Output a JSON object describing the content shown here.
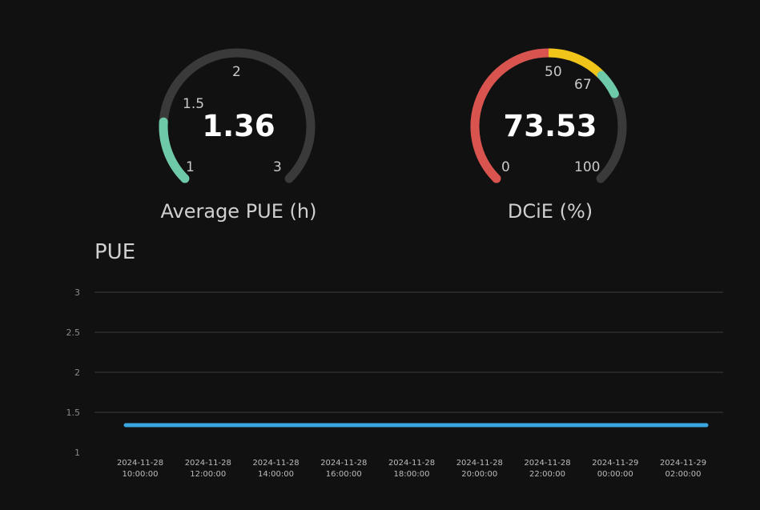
{
  "gauges": {
    "pue": {
      "value_text": "1.36",
      "value": 1.36,
      "label": "Average PUE (h)",
      "min": 1,
      "max": 3,
      "ticks": [
        "1",
        "1.5",
        "2",
        "3"
      ],
      "fill_color": "#6dc9a8",
      "track_color": "#3a3a3a"
    },
    "dcie": {
      "value_text": "73.53",
      "value": 73.53,
      "label": "DCiE (%)",
      "min": 0,
      "max": 100,
      "ticks": [
        "0",
        "50",
        "67",
        "100"
      ],
      "bands": [
        {
          "from": 0,
          "to": 50,
          "color": "#d9534f"
        },
        {
          "from": 50,
          "to": 67,
          "color": "#f0c419"
        },
        {
          "from": 67,
          "to": 73.53,
          "color": "#6dc9a8"
        }
      ],
      "track_color": "#3a3a3a"
    }
  },
  "chart_data": {
    "type": "line",
    "title": "PUE",
    "x": [
      "2024-11-28 10:00:00",
      "2024-11-28 12:00:00",
      "2024-11-28 14:00:00",
      "2024-11-28 16:00:00",
      "2024-11-28 18:00:00",
      "2024-11-28 20:00:00",
      "2024-11-28 22:00:00",
      "2024-11-29 00:00:00",
      "2024-11-29 02:00:00"
    ],
    "x_tick_labels": [
      [
        "2024-11-28",
        "10:00:00"
      ],
      [
        "2024-11-28",
        "12:00:00"
      ],
      [
        "2024-11-28",
        "14:00:00"
      ],
      [
        "2024-11-28",
        "16:00:00"
      ],
      [
        "2024-11-28",
        "18:00:00"
      ],
      [
        "2024-11-28",
        "20:00:00"
      ],
      [
        "2024-11-28",
        "22:00:00"
      ],
      [
        "2024-11-29",
        "00:00:00"
      ],
      [
        "2024-11-29",
        "02:00:00"
      ]
    ],
    "series": [
      {
        "values": [
          1.34,
          1.34,
          1.34,
          1.34,
          1.34,
          1.34,
          1.34,
          1.34,
          1.34
        ],
        "color": "#3aa6e0"
      }
    ],
    "y_ticks": [
      "1",
      "1.5",
      "2",
      "2.5",
      "3"
    ],
    "ylim": [
      1,
      3
    ],
    "grid": true
  }
}
